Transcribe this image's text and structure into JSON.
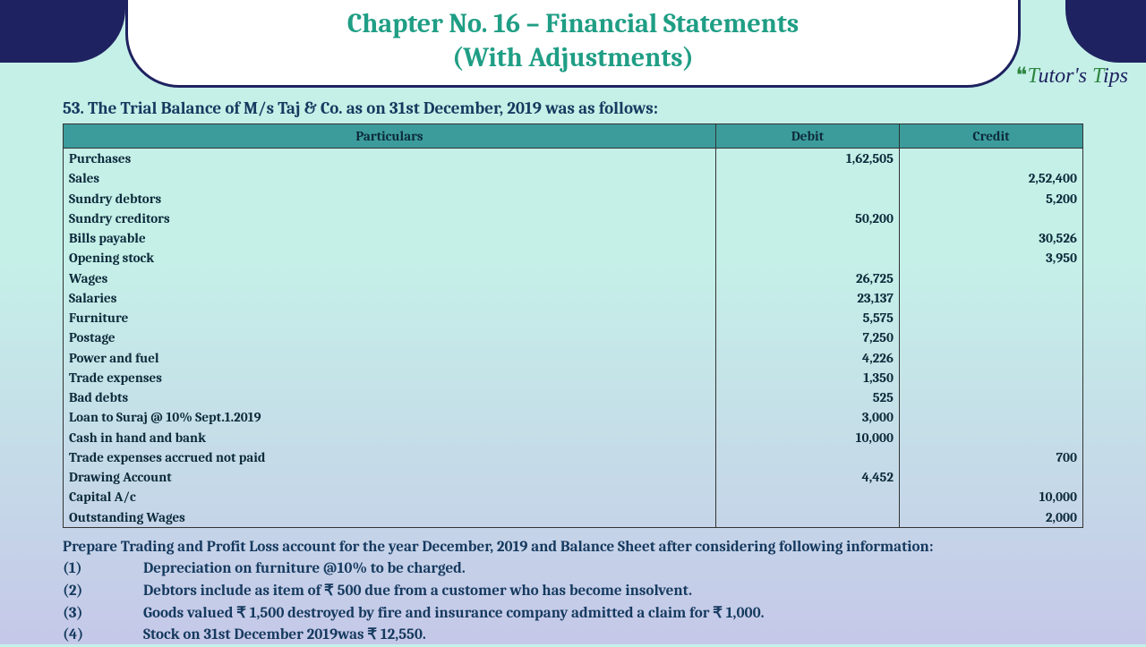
{
  "title": {
    "line1": "Chapter No. 16 – Financial Statements",
    "line2": "(With Adjustments)"
  },
  "logo": {
    "part1": "T",
    "part2": "utor's ",
    "part3": "T",
    "part4": "ips"
  },
  "question": "53. The Trial Balance of M/s Taj & Co. as on 31st December, 2019 was as follows:",
  "table": {
    "headers": {
      "particulars": "Particulars",
      "debit": "Debit",
      "credit": "Credit"
    },
    "rows": [
      {
        "p": "Purchases",
        "d": "1,62,505",
        "c": ""
      },
      {
        "p": "Sales",
        "d": "",
        "c": "2,52,400"
      },
      {
        "p": "Sundry debtors",
        "d": "",
        "c": "5,200"
      },
      {
        "p": "Sundry creditors",
        "d": "50,200",
        "c": ""
      },
      {
        "p": "Bills payable",
        "d": "",
        "c": "30,526"
      },
      {
        "p": "Opening stock",
        "d": "",
        "c": "3,950"
      },
      {
        "p": "Wages",
        "d": "26,725",
        "c": ""
      },
      {
        "p": "Salaries",
        "d": "23,137",
        "c": ""
      },
      {
        "p": "Furniture",
        "d": "5,575",
        "c": ""
      },
      {
        "p": "Postage",
        "d": "7,250",
        "c": ""
      },
      {
        "p": "Power and fuel",
        "d": "4,226",
        "c": ""
      },
      {
        "p": "Trade expenses",
        "d": "1,350",
        "c": ""
      },
      {
        "p": "Bad debts",
        "d": "525",
        "c": ""
      },
      {
        "p": "Loan to Suraj @ 10% Sept.1.2019",
        "d": "3,000",
        "c": ""
      },
      {
        "p": "Cash in hand and bank",
        "d": "10,000",
        "c": ""
      },
      {
        "p": "Trade expenses accrued not paid",
        "d": "",
        "c": "700"
      },
      {
        "p": "Drawing Account",
        "d": "4,452",
        "c": ""
      },
      {
        "p": "Capital A/c",
        "d": "",
        "c": "10,000"
      },
      {
        "p": "Outstanding Wages",
        "d": "",
        "c": "2,000"
      }
    ]
  },
  "notes": {
    "intro": "Prepare Trading and Profit Loss account for the year December, 2019 and Balance Sheet after considering following information:",
    "items": [
      {
        "n": "(1)",
        "t": "Depreciation on furniture @10% to be charged."
      },
      {
        "n": "(2)",
        "t": "Debtors include as item of ₹ 500 due from a customer who has become insolvent."
      },
      {
        "n": "(3)",
        "t": "Goods valued ₹ 1,500 destroyed by fire and insurance company admitted a claim for ₹ 1,000."
      },
      {
        "n": "(4)",
        "t": "Stock on 31st December 2019was ₹ 12,550."
      }
    ]
  }
}
